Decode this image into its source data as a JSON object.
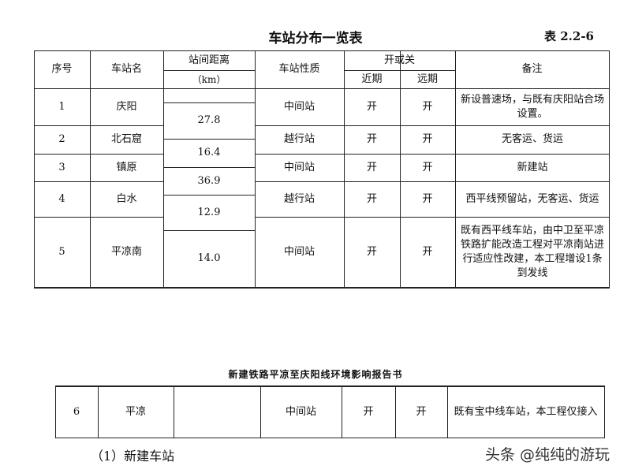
{
  "title": "车站分布一览表",
  "table_number": "表 2.2-6",
  "headers": {
    "no": "序号",
    "name": "车站名",
    "distance": "站间距离",
    "distance_unit": "（km）",
    "type": "车站性质",
    "open": "开或关",
    "near": "近期",
    "far": "远期",
    "remark": "备注"
  },
  "rows": [
    {
      "no": "1",
      "name": "庆阳",
      "type": "中间站",
      "near": "开",
      "far": "开",
      "remark": "新设普速场，与既有庆阳站合场设置。"
    },
    {
      "no": "2",
      "name": "北石窟",
      "type": "越行站",
      "near": "开",
      "far": "开",
      "remark": "无客运、货运"
    },
    {
      "no": "3",
      "name": "镇原",
      "type": "中间站",
      "near": "开",
      "far": "开",
      "remark": "新建站"
    },
    {
      "no": "4",
      "name": "白水",
      "type": "越行站",
      "near": "开",
      "far": "开",
      "remark": "西平线预留站，无客运、货运"
    },
    {
      "no": "5",
      "name": "平凉南",
      "type": "中间站",
      "near": "开",
      "far": "开",
      "remark": "既有西平线车站，由中卫至平凉铁路扩能改造工程对平凉南站进行适应性改建，本工程增设1条到发线"
    }
  ],
  "distances": [
    "27.8",
    "16.4",
    "36.9",
    "12.9",
    "14.0"
  ],
  "report_header": "新建铁路平凉至庆阳线环境影响报告书",
  "row6": {
    "no": "6",
    "name": "平凉",
    "distance": "",
    "type": "中间站",
    "near": "开",
    "far": "开",
    "remark": "既有宝中线车站，本工程仅接入"
  },
  "section": "（1）新建车站",
  "watermark": "头条 @纯纯的游玩"
}
